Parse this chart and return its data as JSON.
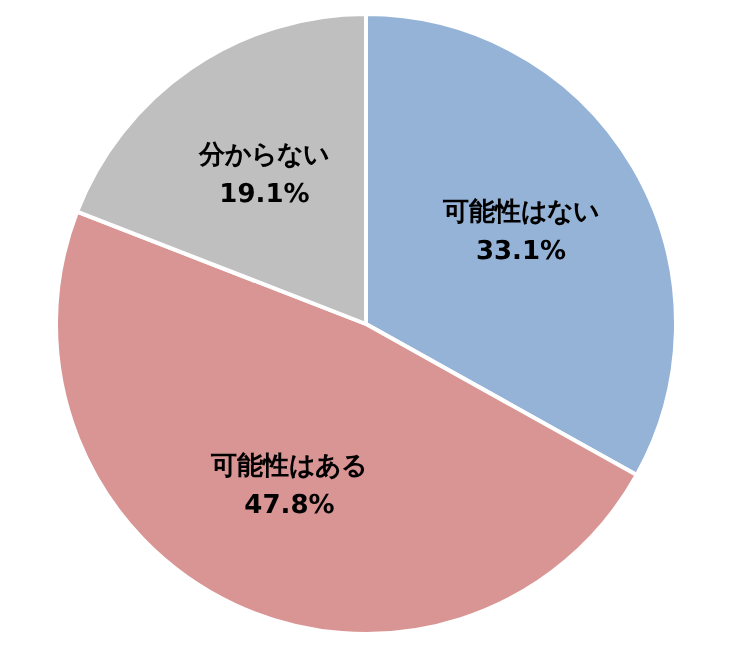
{
  "chart_data": {
    "type": "pie",
    "categories": [
      "可能性はない",
      "可能性はある",
      "分からない"
    ],
    "values": [
      33.1,
      47.8,
      19.1
    ],
    "colors": [
      "#95b3d7",
      "#d99594",
      "#bfbfbf"
    ],
    "value_labels": [
      "33.1%",
      "47.8%",
      "19.1%"
    ]
  }
}
